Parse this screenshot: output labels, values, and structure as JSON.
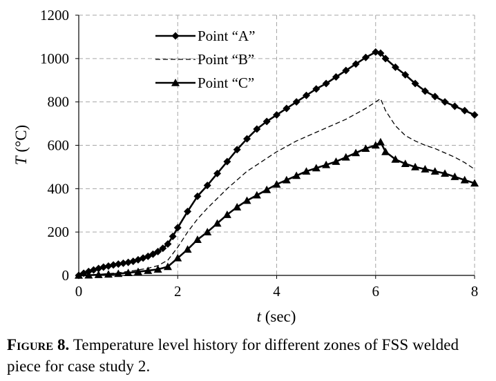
{
  "chart_data": {
    "type": "line",
    "xlabel_var": "t",
    "xlabel_unit": " (sec)",
    "ylabel_var": "T",
    "ylabel_unit": " (°C)",
    "xlim": [
      0,
      8
    ],
    "ylim": [
      0,
      1200
    ],
    "xticks": [
      0,
      2,
      4,
      6,
      8
    ],
    "yticks": [
      0,
      200,
      400,
      600,
      800,
      1000,
      1200
    ],
    "grid": true,
    "legend_position": "top-left",
    "series": [
      {
        "name": "Point “A”",
        "marker": "diamond",
        "line_style": "solid",
        "color": "#000000",
        "x": [
          0,
          0.1,
          0.2,
          0.3,
          0.4,
          0.5,
          0.6,
          0.7,
          0.8,
          0.9,
          1.0,
          1.1,
          1.2,
          1.3,
          1.4,
          1.5,
          1.6,
          1.7,
          1.8,
          1.9,
          2.0,
          2.2,
          2.4,
          2.6,
          2.8,
          3.0,
          3.2,
          3.4,
          3.6,
          3.8,
          4.0,
          4.2,
          4.4,
          4.6,
          4.8,
          5.0,
          5.2,
          5.4,
          5.6,
          5.8,
          6.0,
          6.1,
          6.2,
          6.4,
          6.6,
          6.8,
          7.0,
          7.2,
          7.4,
          7.6,
          7.8,
          8.0
        ],
        "values": [
          0,
          10,
          18,
          25,
          32,
          38,
          43,
          48,
          52,
          56,
          60,
          65,
          72,
          80,
          88,
          98,
          110,
          125,
          145,
          180,
          220,
          295,
          365,
          415,
          470,
          525,
          580,
          630,
          675,
          710,
          740,
          770,
          800,
          830,
          860,
          885,
          915,
          945,
          975,
          1005,
          1030,
          1025,
          1000,
          960,
          925,
          885,
          850,
          825,
          800,
          780,
          760,
          740
        ]
      },
      {
        "name": "Point “B”",
        "marker": "none",
        "line_style": "dashed",
        "color": "#000000",
        "x": [
          0,
          0.2,
          0.4,
          0.6,
          0.8,
          1.0,
          1.2,
          1.4,
          1.6,
          1.8,
          2.0,
          2.2,
          2.4,
          2.6,
          2.8,
          3.0,
          3.2,
          3.4,
          3.6,
          3.8,
          4.0,
          4.2,
          4.4,
          4.6,
          4.8,
          5.0,
          5.2,
          5.4,
          5.6,
          5.8,
          6.0,
          6.1,
          6.2,
          6.4,
          6.6,
          6.8,
          7.0,
          7.2,
          7.4,
          7.6,
          7.8,
          8.0
        ],
        "values": [
          0,
          2,
          5,
          8,
          12,
          18,
          25,
          33,
          45,
          70,
          130,
          200,
          260,
          310,
          355,
          400,
          440,
          480,
          510,
          540,
          570,
          595,
          620,
          640,
          660,
          680,
          700,
          720,
          745,
          770,
          800,
          815,
          760,
          690,
          645,
          620,
          600,
          585,
          565,
          545,
          520,
          490
        ]
      },
      {
        "name": "Point “C”",
        "marker": "triangle",
        "line_style": "solid",
        "color": "#000000",
        "x": [
          0,
          0.2,
          0.4,
          0.6,
          0.8,
          1.0,
          1.2,
          1.4,
          1.6,
          1.8,
          2.0,
          2.2,
          2.4,
          2.6,
          2.8,
          3.0,
          3.2,
          3.4,
          3.6,
          3.8,
          4.0,
          4.2,
          4.4,
          4.6,
          4.8,
          5.0,
          5.2,
          5.4,
          5.6,
          5.8,
          6.0,
          6.1,
          6.2,
          6.4,
          6.6,
          6.8,
          7.0,
          7.2,
          7.4,
          7.6,
          7.8,
          8.0
        ],
        "values": [
          0,
          1,
          3,
          5,
          8,
          12,
          17,
          22,
          28,
          40,
          80,
          120,
          165,
          200,
          240,
          280,
          315,
          345,
          370,
          395,
          420,
          440,
          460,
          480,
          495,
          510,
          525,
          545,
          565,
          585,
          600,
          615,
          570,
          535,
          515,
          500,
          490,
          480,
          470,
          455,
          440,
          425
        ]
      }
    ]
  },
  "caption": {
    "label": "Figure 8.",
    "text": " Temperature level history for different zones of FSS welded piece for case study 2."
  }
}
